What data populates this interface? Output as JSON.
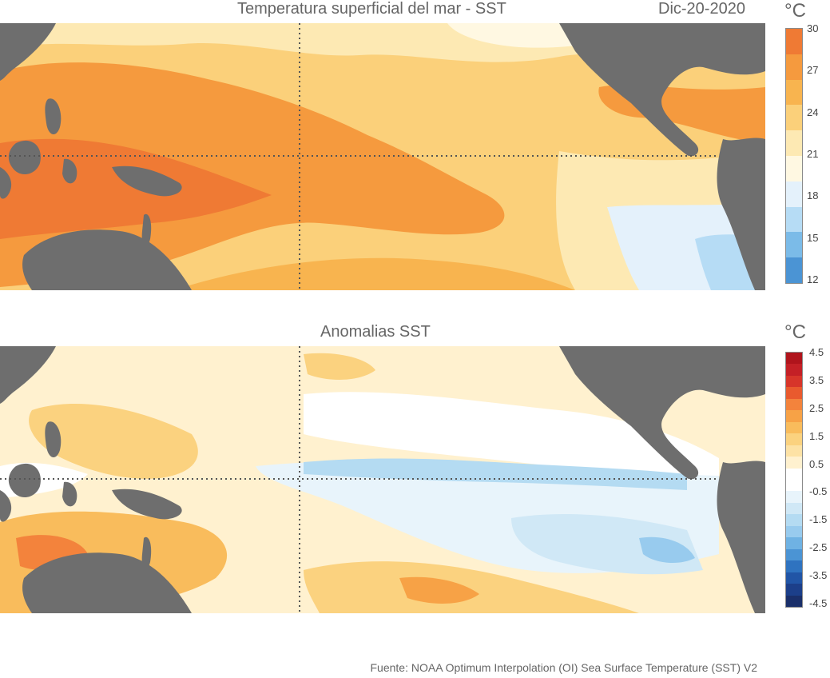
{
  "top": {
    "title": "Temperatura superficial del mar - SST",
    "date": "Dic-20-2020",
    "unit": "°C",
    "colorbar": {
      "ticks": [
        "30",
        "27",
        "24",
        "21",
        "18",
        "15",
        "12"
      ],
      "colors": [
        "#ef7a34",
        "#f59a3e",
        "#f8b44f",
        "#fbd07a",
        "#fde9b3",
        "#fff8e2",
        "#e4f1fb",
        "#b6dcf5",
        "#7bbbe8",
        "#4b94d4"
      ]
    }
  },
  "bottom": {
    "title": "Anomalias SST",
    "unit": "°C",
    "colorbar": {
      "ticks": [
        "4.5",
        "3.5",
        "2.5",
        "1.5",
        "0.5",
        "-0.5",
        "-1.5",
        "-2.5",
        "-3.5",
        "-4.5"
      ],
      "colors": [
        "#b0141c",
        "#c42026",
        "#d7352a",
        "#e95a2e",
        "#f3833c",
        "#f7a246",
        "#f9bc5c",
        "#fbd27f",
        "#fde2a5",
        "#fff1cf",
        "#ffffff",
        "#ffffff",
        "#e8f4fb",
        "#d0e8f6",
        "#b4dbf2",
        "#98cbee",
        "#6fb2e3",
        "#4b94d4",
        "#2f73c0",
        "#2155a6",
        "#1c3f8a",
        "#1a2f6a"
      ]
    }
  },
  "source": "Fuente: NOAA Optimum Interpolation (OI) Sea Surface Temperature (SST) V2",
  "colors": {
    "land": "#6e6e6e",
    "text": "#666666",
    "grid": "#555555"
  }
}
